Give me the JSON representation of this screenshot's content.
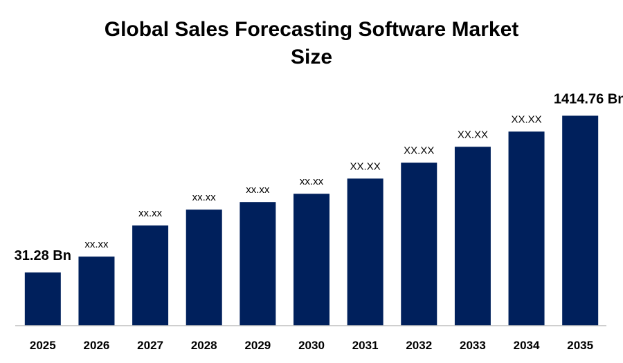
{
  "chart_data": {
    "type": "bar",
    "title": "Global Sales Forecasting Software Market Size",
    "categories": [
      "2025",
      "2026",
      "2027",
      "2028",
      "2029",
      "2030",
      "2031",
      "2032",
      "2033",
      "2034",
      "2035"
    ],
    "values": [
      31.28,
      171.5,
      445.8,
      586,
      653,
      726,
      860,
      1000,
      1140.6,
      1274.7,
      1414.76
    ],
    "value_labels": [
      "31.28 Bn",
      "xx.xx",
      "xx.xx",
      "xx.xx",
      "xx.xx",
      "xx.xx",
      "XX.XX",
      "XX.XX",
      "XX.XX",
      "XX.XX",
      "1414.76 Bn"
    ],
    "color": "#00205c",
    "ylim": [
      -438,
      1600
    ]
  }
}
